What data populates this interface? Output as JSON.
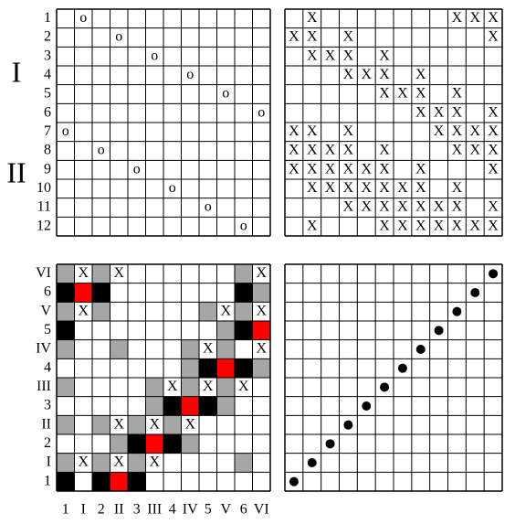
{
  "labels": {
    "group_1": "I",
    "group_2": "II"
  },
  "top_left": {
    "mark": "o",
    "row_labels": [
      "1",
      "2",
      "3",
      "4",
      "5",
      "6",
      "7",
      "8",
      "9",
      "10",
      "11",
      "12"
    ],
    "rows": [
      [
        2
      ],
      [
        4
      ],
      [
        6
      ],
      [
        8
      ],
      [
        10
      ],
      [
        12
      ],
      [
        1
      ],
      [
        3
      ],
      [
        5
      ],
      [
        7
      ],
      [
        9
      ],
      [
        11
      ]
    ]
  },
  "top_right": {
    "mark": "X",
    "rows": [
      [
        2,
        10,
        11,
        12
      ],
      [
        1,
        2,
        4,
        12
      ],
      [
        2,
        3,
        4,
        6
      ],
      [
        4,
        5,
        6,
        8
      ],
      [
        6,
        7,
        8,
        10
      ],
      [
        8,
        9,
        10,
        12
      ],
      [
        1,
        2,
        4,
        9,
        10,
        11,
        12
      ],
      [
        1,
        2,
        3,
        4,
        6,
        10,
        11,
        12
      ],
      [
        1,
        2,
        3,
        4,
        5,
        6,
        8,
        12
      ],
      [
        2,
        3,
        4,
        5,
        6,
        7,
        8,
        10
      ],
      [
        4,
        5,
        6,
        7,
        8,
        9,
        10,
        12
      ],
      [
        2,
        6,
        7,
        8,
        9,
        10,
        11,
        12
      ]
    ]
  },
  "bottom_left": {
    "mark": "X",
    "row_labels": [
      "VI",
      "6",
      "V",
      "5",
      "IV",
      "4",
      "III",
      "3",
      "II",
      "2",
      "I",
      "1"
    ],
    "col_labels": [
      "1",
      "I",
      "2",
      "II",
      "3",
      "III",
      "4",
      "IV",
      "5",
      "V",
      "6",
      "VI"
    ],
    "colors": {
      "gray": "#a6a6a6",
      "black": "#000000",
      "red": "#ff0000"
    },
    "x_rows": [
      [
        2,
        4,
        12
      ],
      [],
      [
        2,
        10,
        12
      ],
      [],
      [
        9,
        12
      ],
      [],
      [
        7,
        9,
        11
      ],
      [],
      [
        4,
        6,
        8
      ],
      [],
      [
        2,
        4,
        6
      ],
      []
    ],
    "gray_rows": [
      [
        1,
        3,
        11
      ],
      [
        12
      ],
      [
        1,
        3,
        9,
        11
      ],
      [
        10
      ],
      [
        1,
        4,
        8,
        10
      ],
      [
        8,
        12
      ],
      [
        1,
        6,
        8,
        10
      ],
      [
        6,
        10
      ],
      [
        1,
        3,
        5,
        7
      ],
      [
        4,
        8
      ],
      [
        1,
        3,
        5,
        11
      ],
      []
    ],
    "black_rows": [
      [],
      [
        1,
        3,
        11
      ],
      [],
      [
        1,
        11
      ],
      [],
      [
        9,
        11
      ],
      [],
      [
        7,
        9
      ],
      [],
      [
        5,
        7
      ],
      [],
      [
        1,
        3,
        5
      ]
    ],
    "red_rows": [
      [],
      [
        2
      ],
      [],
      [
        12
      ],
      [],
      [
        10
      ],
      [],
      [
        8
      ],
      [],
      [
        6
      ],
      [],
      [
        4
      ]
    ]
  },
  "bottom_right": {
    "dot_cols": [
      12,
      11,
      10,
      9,
      8,
      7,
      6,
      5,
      4,
      3,
      2,
      1
    ]
  }
}
